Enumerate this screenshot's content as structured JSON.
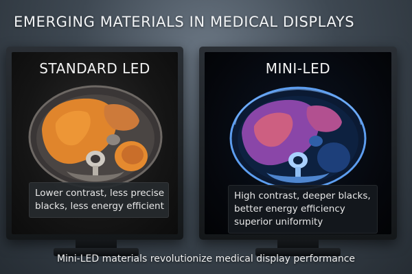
{
  "title": "EMERGING MATERIALS IN MEDICAL DISPLAYS",
  "left_monitor": {
    "label": "STANDARD LED",
    "caption_lines": [
      "Lower contrast, less precise",
      "blacks, less energy efficient"
    ]
  },
  "right_monitor": {
    "label": "MINI-LED",
    "caption_lines": [
      "High contrast, deeper blacks,",
      "better energy efficiency",
      "superior uniformity"
    ]
  },
  "footer": "Mini-LED materials revolutionize medical display performance",
  "colors": {
    "standard_tissue": "#e58a2f",
    "miniled_tissue": "#c8508a",
    "miniled_glow": "#3d7bd8"
  }
}
